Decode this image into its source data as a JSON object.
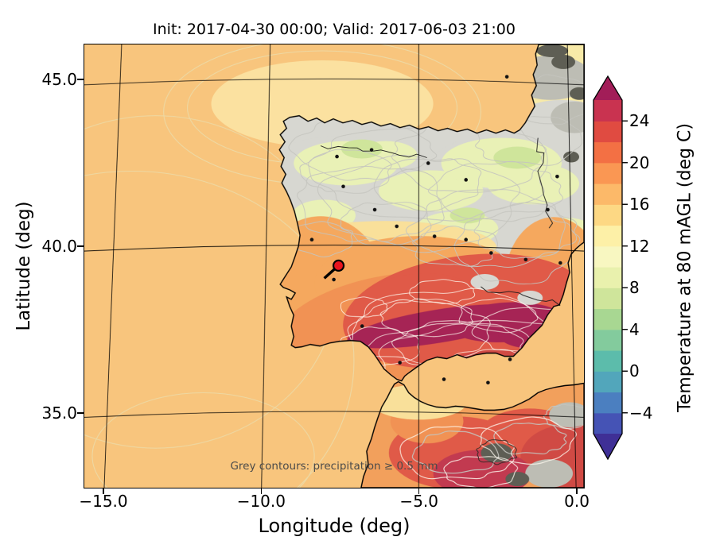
{
  "title": "Init: 2017-04-30 00:00; Valid: 2017-06-03 21:00",
  "axes": {
    "xlabel": "Longitude (deg)",
    "ylabel": "Latitude (deg)",
    "x_tick_labels": [
      "−15.0",
      "−10.0",
      "−5.0",
      "0.0"
    ],
    "x_tick_values": [
      -15,
      -10,
      -5,
      0
    ],
    "y_tick_labels": [
      "45.0",
      "40.0",
      "35.0"
    ],
    "y_tick_values": [
      45,
      40,
      35
    ]
  },
  "map_annotation": "Grey contours: precipitation ≥ 0.5 mm",
  "colorbar": {
    "label": "Temperature at 80 mAGL (deg C)",
    "tick_labels": [
      "24",
      "20",
      "16",
      "12",
      "8",
      "4",
      "0",
      "−4"
    ],
    "tick_values": [
      24,
      20,
      16,
      12,
      8,
      4,
      0,
      -4
    ],
    "range": [
      -6,
      26
    ],
    "stops": [
      {
        "v": -8,
        "c": "#3f2f96"
      },
      {
        "v": -6,
        "c": "#4553b5"
      },
      {
        "v": -4,
        "c": "#4b7fc0"
      },
      {
        "v": -2,
        "c": "#52a6bb"
      },
      {
        "v": 0,
        "c": "#5cbcab"
      },
      {
        "v": 2,
        "c": "#83cb9d"
      },
      {
        "v": 4,
        "c": "#a8d792"
      },
      {
        "v": 6,
        "c": "#cfe59b"
      },
      {
        "v": 8,
        "c": "#e9f1ad"
      },
      {
        "v": 10,
        "c": "#f8f7c1"
      },
      {
        "v": 12,
        "c": "#fdf0a7"
      },
      {
        "v": 14,
        "c": "#fdd884"
      },
      {
        "v": 16,
        "c": "#fcb969"
      },
      {
        "v": 18,
        "c": "#fa9753"
      },
      {
        "v": 20,
        "c": "#f37044"
      },
      {
        "v": 22,
        "c": "#e04b41"
      },
      {
        "v": 24,
        "c": "#c93350"
      },
      {
        "v": 26,
        "c": "#a21d58"
      }
    ]
  },
  "palette": {
    "ocean": "#f8c57d",
    "ocean_light": "#fbe1a0",
    "ocean_ring": "#eed9a4",
    "land_base": "#f1c87c",
    "france_pale": "#f8eaa8",
    "precip_grey": "#d7d7d1",
    "grey_patch": "#bdbdb4",
    "green_pale": "#e9f1b6",
    "green_mid": "#cfe59b",
    "pale_yellow": "#f9e09a",
    "orange_mid": "#f5a85e",
    "orange_deep": "#f19254",
    "red_mid": "#e05a48",
    "red_deep": "#d04a44",
    "crimson": "#c23a50",
    "magenta": "#a62455",
    "africa_base": "#f2a05c",
    "dark_spot": "#5e5e54",
    "contour_grey": "#c5c5bf",
    "contour_white": "rgba(255,250,240,0.85)",
    "coast": "#000000",
    "grid": "#000000",
    "annotation_grey": "#4a4a4a"
  },
  "marker": {
    "lon": -7.55,
    "lat": 39.42,
    "color": "#e8141e"
  },
  "station_dots": [
    [
      -7.6,
      42.7
    ],
    [
      -6.5,
      42.9
    ],
    [
      -4.7,
      42.5
    ],
    [
      -3.5,
      42.0
    ],
    [
      -6.4,
      41.1
    ],
    [
      -5.7,
      40.6
    ],
    [
      -4.5,
      40.3
    ],
    [
      -3.5,
      40.2
    ],
    [
      -2.7,
      39.8
    ],
    [
      -1.6,
      39.6
    ],
    [
      -7.7,
      39.0
    ],
    [
      -6.8,
      37.6
    ],
    [
      -5.6,
      36.5
    ],
    [
      -4.2,
      36.0
    ],
    [
      -2.8,
      35.9
    ],
    [
      -2.1,
      36.6
    ],
    [
      -0.6,
      42.1
    ],
    [
      -0.9,
      41.1
    ],
    [
      -7.4,
      41.8
    ],
    [
      -8.4,
      40.2
    ],
    [
      -2.2,
      45.1
    ],
    [
      -0.5,
      39.5
    ]
  ],
  "chart_data": {
    "type": "heatmap",
    "title": "Init: 2017-04-30 00:00; Valid: 2017-06-03 21:00",
    "init_time": "2017-04-30 00:00",
    "valid_time": "2017-06-03 21:00",
    "variable": "Temperature at 80 mAGL (deg C)",
    "xlabel": "Longitude (deg)",
    "ylabel": "Latitude (deg)",
    "xlim": [
      -15.63,
      0.25
    ],
    "ylim": [
      32.74,
      46.07
    ],
    "x_ticks": [
      -15.0,
      -10.0,
      -5.0,
      0.0
    ],
    "y_ticks": [
      35.0,
      40.0,
      45.0
    ],
    "colorbar_ticks": [
      24,
      20,
      16,
      12,
      8,
      4,
      0,
      -4
    ],
    "colorbar_range_shown": [
      -6,
      26
    ],
    "annotation": "Grey contours: precipitation ≥ 0.5 mm",
    "marker_lonlat": [
      -7.55,
      39.42
    ],
    "region": "Iberian Peninsula and northwest Africa",
    "grid": true,
    "legend_position": "right-colorbar"
  }
}
